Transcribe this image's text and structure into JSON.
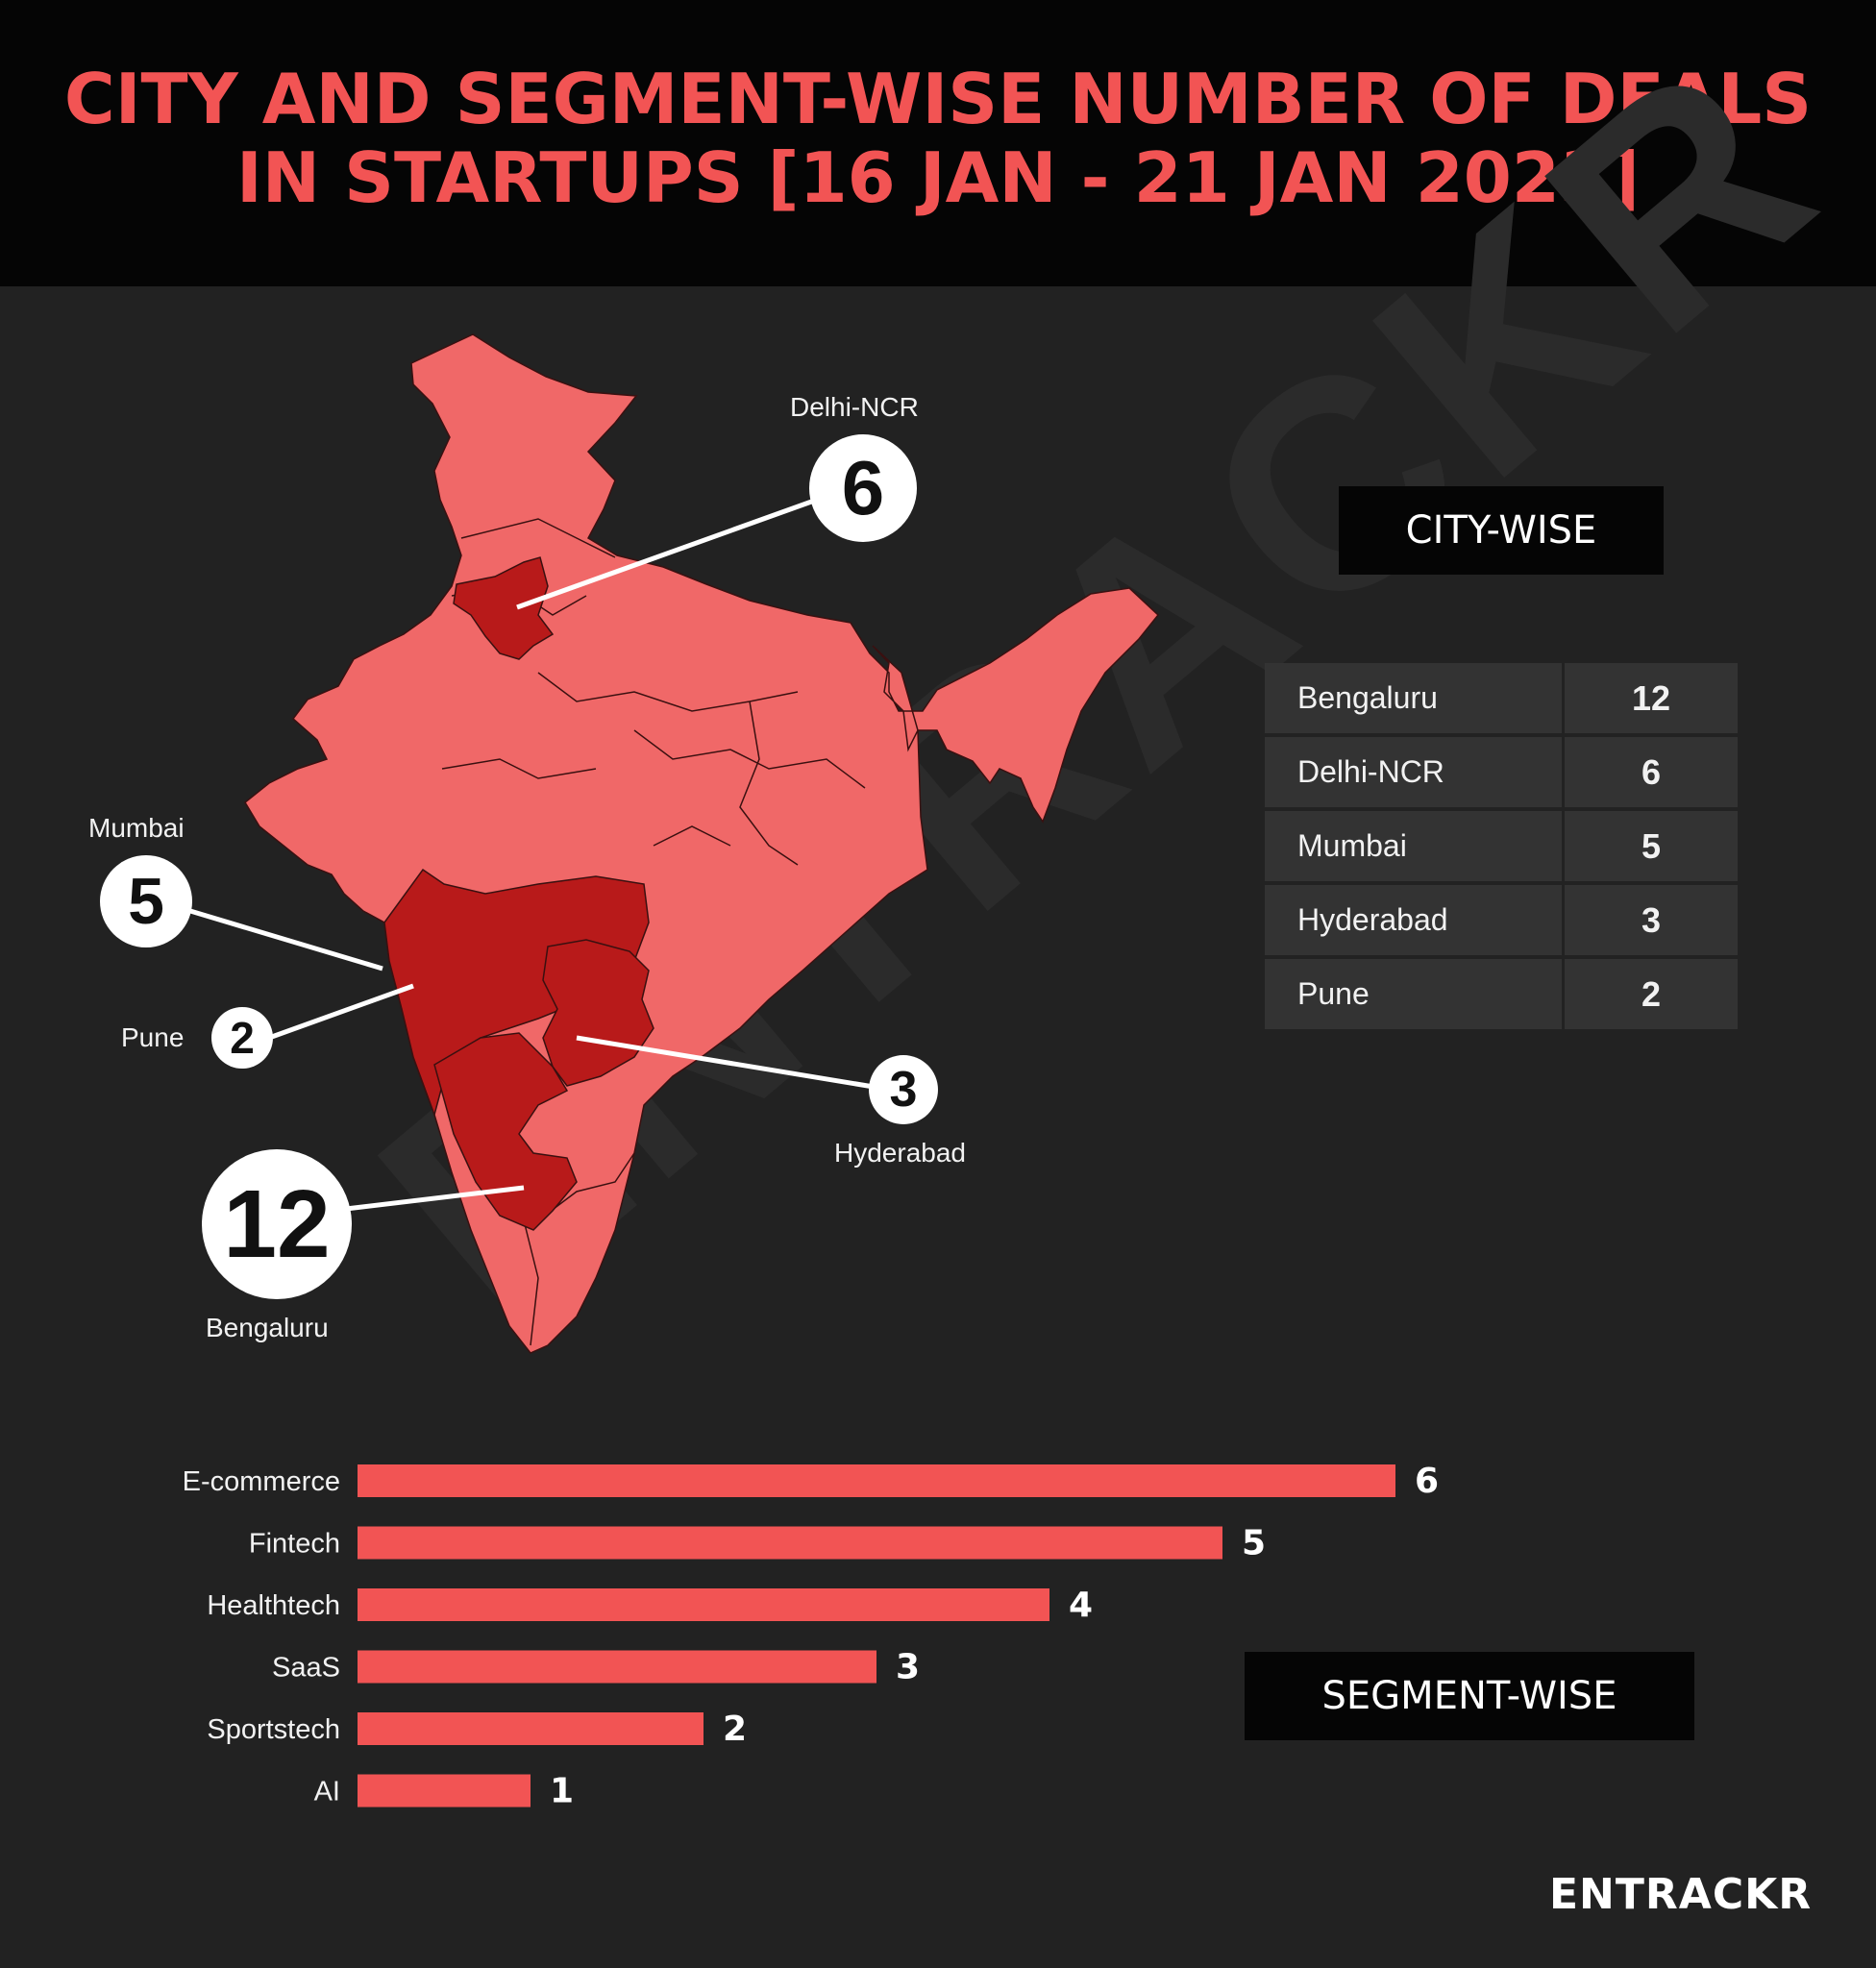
{
  "title_lines": [
    "CITY AND SEGMENT-WISE NUMBER OF DEALS",
    "IN STARTUPS [16 JAN - 21 JAN 2023]"
  ],
  "watermark": "ENTRACKR",
  "logo": "ENTRACKR",
  "colors": {
    "map_fill": "#f06868",
    "highlight": "#b81a1a",
    "bar": "#f25454",
    "title": "#f25454"
  },
  "map": {
    "cities": [
      {
        "name": "Delhi-NCR",
        "deals": "6"
      },
      {
        "name": "Mumbai",
        "deals": "5"
      },
      {
        "name": "Pune",
        "deals": "2"
      },
      {
        "name": "Hyderabad",
        "deals": "3"
      },
      {
        "name": "Bengaluru",
        "deals": "12"
      }
    ]
  },
  "city_wise": {
    "heading": "CITY-WISE",
    "rows": [
      {
        "city": "Bengaluru",
        "deals": "12"
      },
      {
        "city": "Delhi-NCR",
        "deals": "6"
      },
      {
        "city": "Mumbai",
        "deals": "5"
      },
      {
        "city": "Hyderabad",
        "deals": "3"
      },
      {
        "city": "Pune",
        "deals": "2"
      }
    ]
  },
  "segment_wise": {
    "heading": "SEGMENT-WISE"
  },
  "chart_data": {
    "type": "bar",
    "orientation": "horizontal",
    "categories": [
      "E-commerce",
      "Fintech",
      "Healthtech",
      "SaaS",
      "Sportstech",
      "AI"
    ],
    "values": [
      6,
      5,
      4,
      3,
      2,
      1
    ],
    "title": "",
    "xlabel": "",
    "ylabel": "",
    "xlim": [
      0,
      6
    ]
  }
}
